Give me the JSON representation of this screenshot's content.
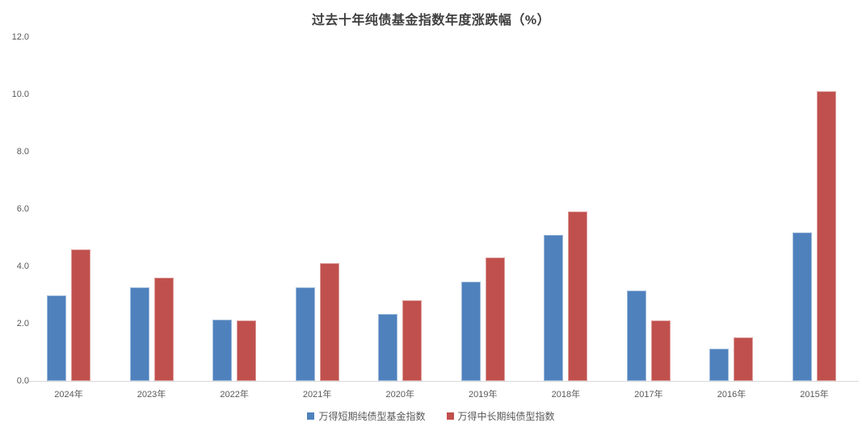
{
  "title": "过去十年纯债基金指数年度涨跌幅（%）",
  "colors": {
    "series_short_term_blue": "#4F81BD",
    "series_medium_long_red": "#C0504D",
    "axis_text": "#595959",
    "title_text": "#3F3F3F",
    "axis_line": "#D9D9D9",
    "background": "#FFFFFF"
  },
  "chart_data": {
    "type": "bar",
    "title": "过去十年纯债基金指数年度涨跌幅（%）",
    "xlabel": "",
    "ylabel": "",
    "categories": [
      "2024年",
      "2023年",
      "2022年",
      "2021年",
      "2020年",
      "2019年",
      "2018年",
      "2017年",
      "2016年",
      "2015年"
    ],
    "series": [
      {
        "name": "万得短期纯债型基金指数",
        "color": "#4F81BD",
        "values": [
          3.0,
          3.27,
          2.13,
          3.26,
          2.33,
          3.47,
          5.11,
          3.16,
          1.13,
          5.19
        ]
      },
      {
        "name": "万得中长期纯债型指数",
        "color": "#C0504D",
        "values": [
          4.58,
          3.6,
          2.12,
          4.11,
          2.82,
          4.31,
          5.91,
          2.12,
          1.51,
          10.12
        ]
      }
    ],
    "ylim": [
      0,
      12
    ],
    "ytick_interval": 2,
    "ytick_labels": [
      "0.0",
      "2.0",
      "4.0",
      "6.0",
      "8.0",
      "10.0",
      "12.0"
    ],
    "grid": false,
    "legend_position": "bottom"
  }
}
